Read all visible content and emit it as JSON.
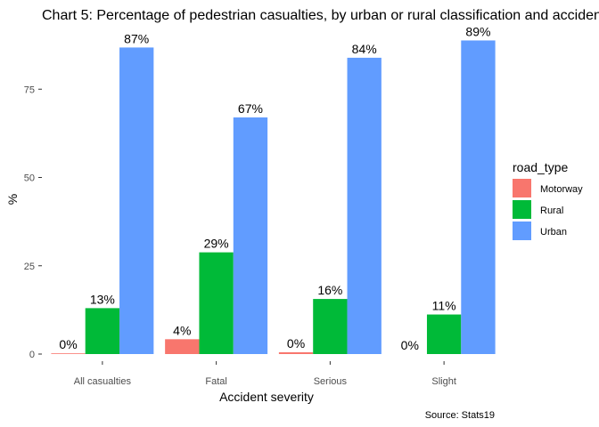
{
  "chart_data": {
    "type": "bar",
    "title": "Chart 5: Percentage of pedestrian casualties, by urban or rural classification and accident severity",
    "xlabel": "Accident severity",
    "ylabel": "%",
    "caption": "Source: Stats19",
    "categories": [
      "All casualties",
      "Fatal",
      "Serious",
      "Slight"
    ],
    "ylim": [
      0,
      90
    ],
    "yticks": [
      0,
      25,
      50,
      75
    ],
    "grid": false,
    "legend": {
      "title": "road_type",
      "position": "right"
    },
    "series": [
      {
        "name": "Motorway",
        "color": "#F8766D",
        "values": [
          0.2,
          4.2,
          0.5,
          0.0
        ],
        "labels": [
          "0%",
          "4%",
          "0%",
          "0%"
        ]
      },
      {
        "name": "Rural",
        "color": "#00BA38",
        "values": [
          13.0,
          28.8,
          15.6,
          11.2
        ],
        "labels": [
          "13%",
          "29%",
          "16%",
          "11%"
        ]
      },
      {
        "name": "Urban",
        "color": "#619CFF",
        "values": [
          86.8,
          67.0,
          83.9,
          88.8
        ],
        "labels": [
          "87%",
          "67%",
          "84%",
          "89%"
        ]
      }
    ]
  }
}
